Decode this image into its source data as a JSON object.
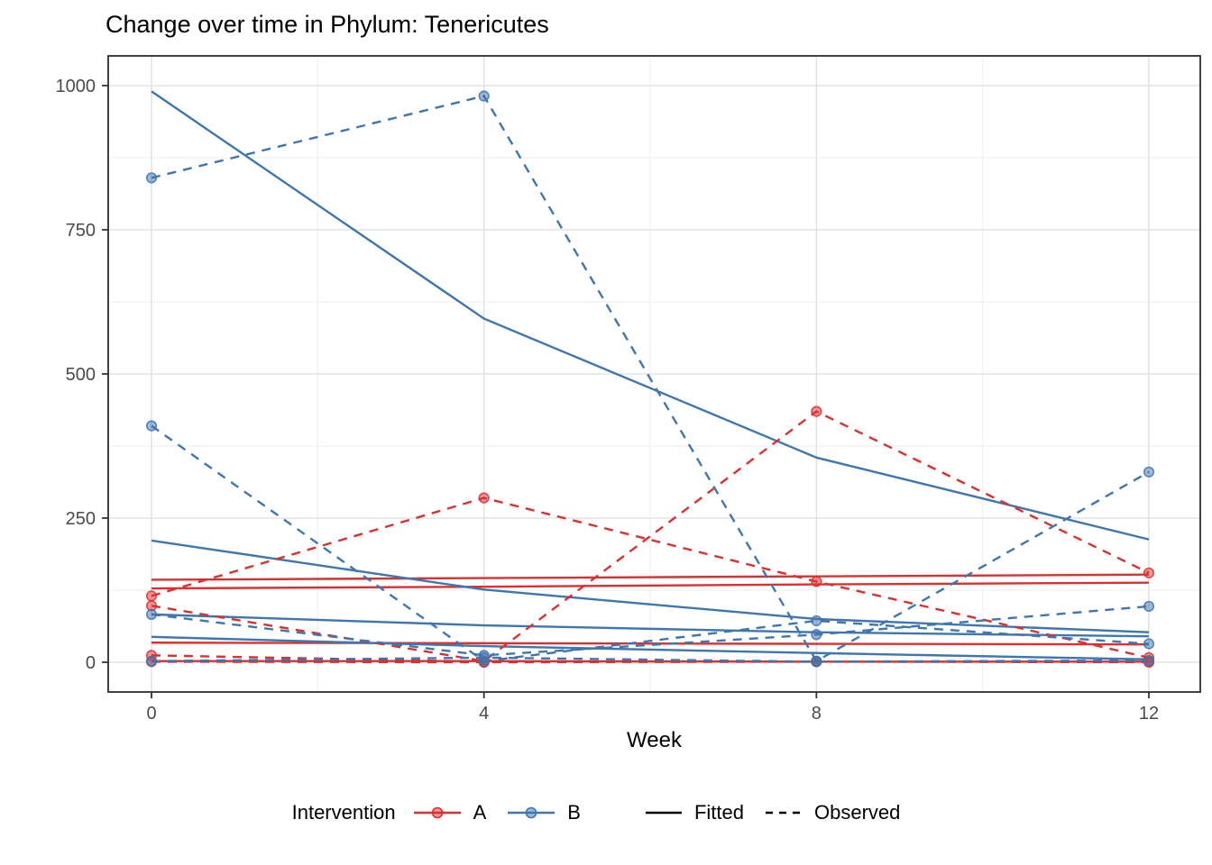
{
  "chart_data": {
    "type": "line",
    "title": "Change over time in Phylum: Tenericutes",
    "xlabel": "Week",
    "ylabel": "",
    "x": [
      0,
      4,
      8,
      12
    ],
    "x_ticks": [
      0,
      4,
      8,
      12
    ],
    "x_tick_labels": [
      "0",
      "4",
      "8",
      "12"
    ],
    "y_ticks": [
      0,
      250,
      500,
      750,
      1000
    ],
    "y_tick_labels": [
      "0",
      "250",
      "500",
      "750",
      "1000"
    ],
    "x_minor_ticks": [
      2,
      6,
      10
    ],
    "y_minor_ticks": [
      125,
      375,
      625,
      875
    ],
    "xlim": [
      -0.52,
      12.62
    ],
    "ylim": [
      -52,
      1052
    ],
    "grid": true,
    "legend_position": "bottom",
    "colors": {
      "A": "#DC3030",
      "B": "#3D76B0",
      "fitted": "#000000",
      "observed": "#000000"
    },
    "series": [
      {
        "subject": "A1",
        "group": "A",
        "type": "fitted",
        "values": [
          143,
          146,
          149,
          152
        ]
      },
      {
        "subject": "A2",
        "group": "A",
        "type": "fitted",
        "values": [
          128,
          131,
          135,
          138
        ]
      },
      {
        "subject": "A3",
        "group": "A",
        "type": "fitted",
        "values": [
          34,
          33,
          32,
          31
        ]
      },
      {
        "subject": "A4",
        "group": "A",
        "type": "fitted",
        "values": [
          2,
          2,
          1,
          1
        ]
      },
      {
        "subject": "B1",
        "group": "B",
        "type": "fitted",
        "values": [
          990,
          596,
          355,
          213
        ]
      },
      {
        "subject": "B2",
        "group": "B",
        "type": "fitted",
        "values": [
          211,
          126,
          75,
          52
        ]
      },
      {
        "subject": "B3",
        "group": "B",
        "type": "fitted",
        "values": [
          83,
          64,
          52,
          45
        ]
      },
      {
        "subject": "B4",
        "group": "B",
        "type": "fitted",
        "values": [
          44,
          28,
          16,
          5
        ]
      },
      {
        "subject": "A1",
        "group": "A",
        "type": "observed",
        "values": [
          115,
          285,
          140,
          8
        ]
      },
      {
        "subject": "A2",
        "group": "A",
        "type": "observed",
        "values": [
          98,
          2,
          435,
          155
        ]
      },
      {
        "subject": "A3",
        "group": "A",
        "type": "observed",
        "values": [
          12,
          1,
          1,
          2
        ]
      },
      {
        "subject": "A4",
        "group": "A",
        "type": "observed",
        "values": [
          1,
          0,
          1,
          0
        ]
      },
      {
        "subject": "B1",
        "group": "B",
        "type": "observed",
        "values": [
          840,
          982,
          2,
          330
        ]
      },
      {
        "subject": "B2",
        "group": "B",
        "type": "observed",
        "values": [
          410,
          2,
          72,
          32
        ]
      },
      {
        "subject": "B3",
        "group": "B",
        "type": "observed",
        "values": [
          83,
          12,
          48,
          97
        ]
      },
      {
        "subject": "B4",
        "group": "B",
        "type": "observed",
        "values": [
          2,
          8,
          1,
          3
        ]
      }
    ],
    "legend": {
      "title": "Intervention",
      "groups": [
        {
          "id": "A",
          "label": "A"
        },
        {
          "id": "B",
          "label": "B"
        }
      ],
      "linetypes": [
        {
          "id": "fitted",
          "label": "Fitted"
        },
        {
          "id": "observed",
          "label": "Observed"
        }
      ]
    }
  }
}
